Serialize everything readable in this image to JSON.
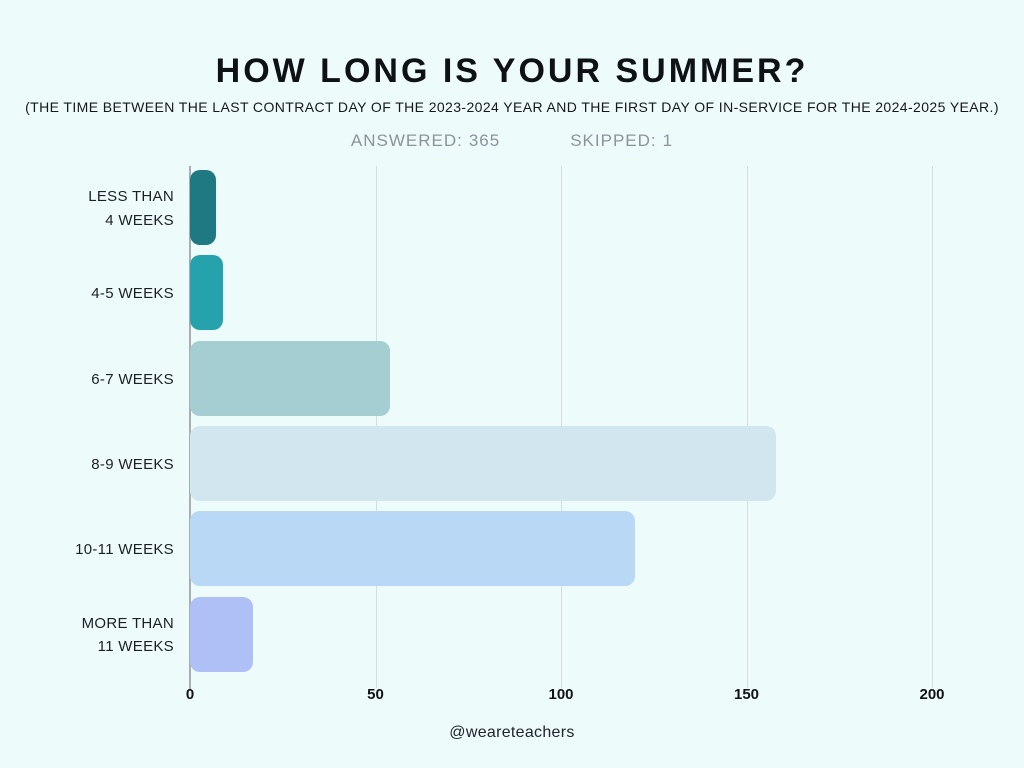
{
  "header": {
    "title": "HOW LONG IS YOUR SUMMER?",
    "subtitle": "(THE TIME BETWEEN THE LAST CONTRACT DAY OF THE 2023-2024 YEAR AND THE FIRST DAY OF IN-SERVICE FOR THE 2024-2025 YEAR.)",
    "answered_label": "ANSWERED:",
    "answered_value": "365",
    "skipped_label": "SKIPPED:",
    "skipped_value": "1"
  },
  "chart_data": {
    "type": "bar",
    "orientation": "horizontal",
    "title": "HOW LONG IS YOUR SUMMER?",
    "categories": [
      "LESS THAN\n4 WEEKS",
      "4-5 WEEKS",
      "6-7 WEEKS",
      "8-9 WEEKS",
      "10-11 WEEKS",
      "MORE THAN\n11 WEEKS"
    ],
    "values": [
      7,
      9,
      54,
      158,
      120,
      17
    ],
    "bar_colors": [
      "#1e7983",
      "#26a2ad",
      "#a4ced2",
      "#d2e6ef",
      "#b8d8f6",
      "#aec0f6"
    ],
    "xlabel": "",
    "ylabel": "",
    "xlim": [
      0,
      200
    ],
    "xticks": [
      0,
      50,
      100,
      150,
      200
    ],
    "grid": "vertical-gridlines-at-ticks",
    "legend": "none"
  },
  "footer": {
    "handle": "@weareteachers"
  },
  "colors": {
    "background": "#eefbfb",
    "gridline": "#d6dde0",
    "axis_line": "#a8aeb4",
    "stats_text": "#8c939c",
    "title_text": "#0e1116"
  }
}
